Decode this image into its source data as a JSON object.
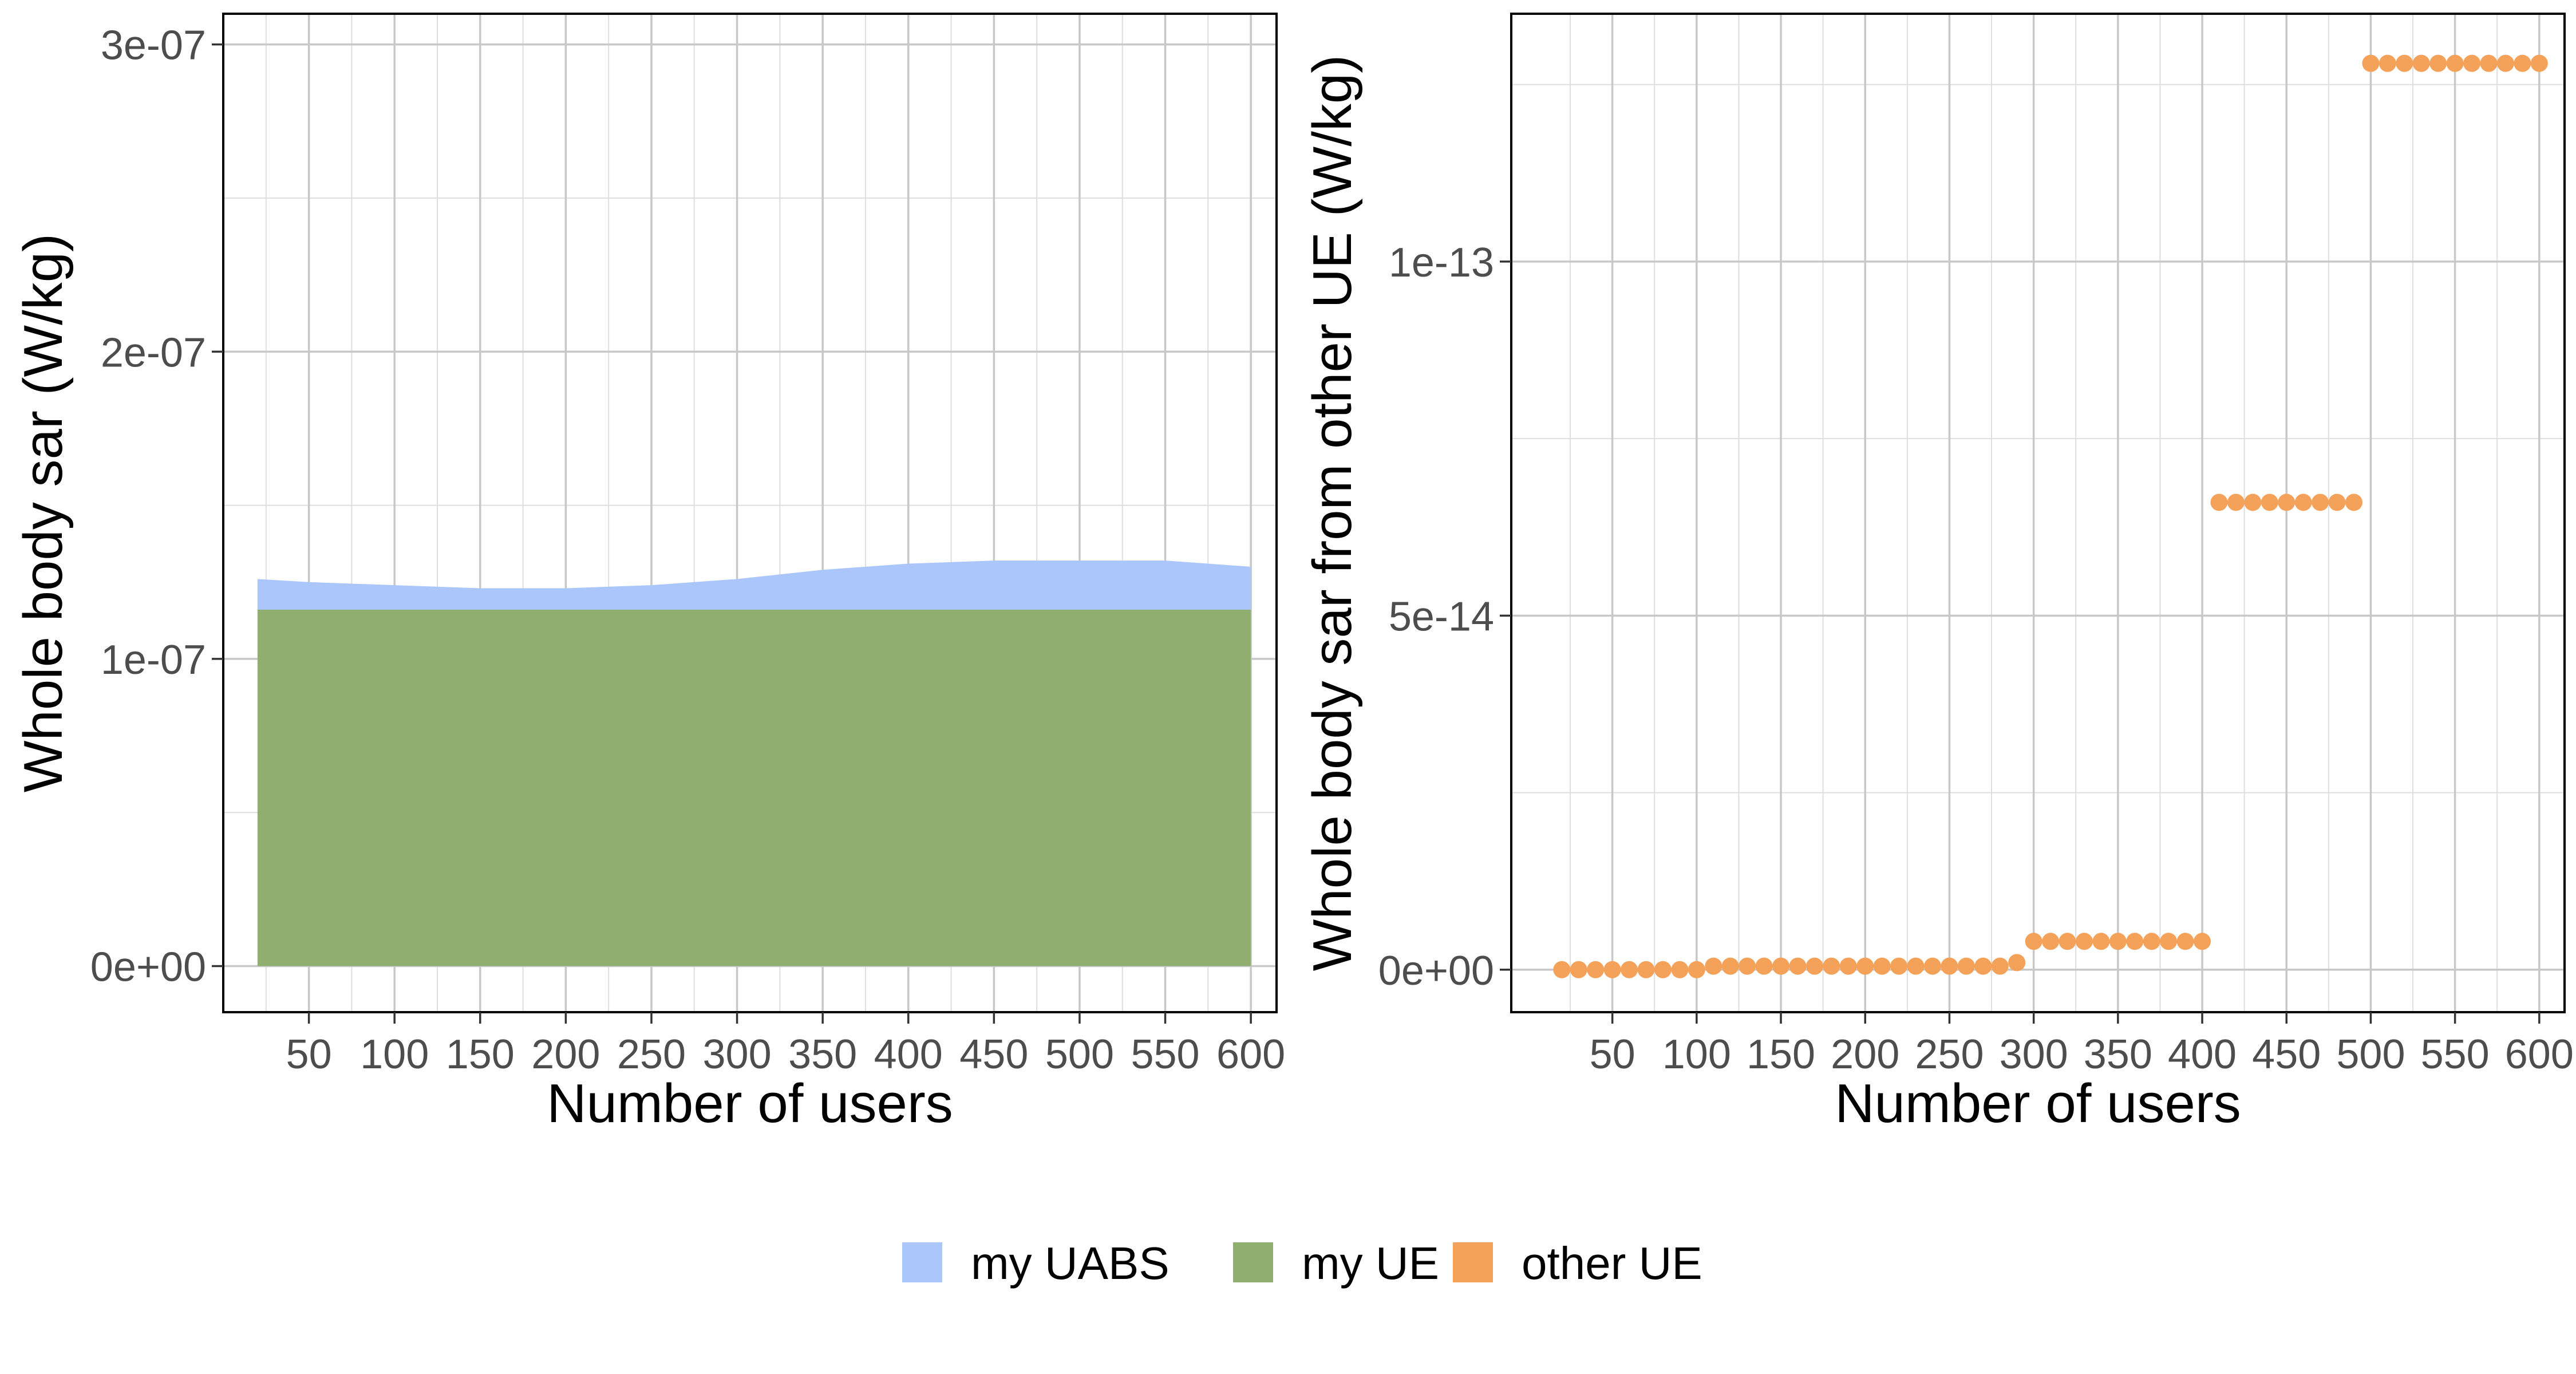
{
  "chart_data": [
    {
      "type": "area",
      "xlabel": "Number of users",
      "ylabel": "Whole body sar (W/kg)",
      "xlim": [
        0,
        615
      ],
      "ylim": [
        -1.5e-08,
        3.1e-07
      ],
      "x_ticks": [
        50,
        100,
        150,
        200,
        250,
        300,
        350,
        400,
        450,
        500,
        550,
        600
      ],
      "x_tick_labels": [
        "50",
        "100",
        "150",
        "200",
        "250",
        "300",
        "350",
        "400",
        "450",
        "500",
        "550",
        "600"
      ],
      "y_ticks": [
        0,
        1e-07,
        2e-07,
        3e-07
      ],
      "y_tick_labels": [
        "0e+00",
        "1e-07",
        "2e-07",
        "3e-07"
      ],
      "stacked": true,
      "grid": true,
      "x": [
        20,
        50,
        100,
        150,
        200,
        250,
        300,
        350,
        400,
        450,
        500,
        550,
        600
      ],
      "series": [
        {
          "name": "my UE",
          "color": "#8fae6f",
          "values": [
            1.16e-07,
            1.16e-07,
            1.16e-07,
            1.16e-07,
            1.16e-07,
            1.16e-07,
            1.16e-07,
            1.16e-07,
            1.16e-07,
            1.16e-07,
            1.16e-07,
            1.16e-07,
            1.16e-07
          ]
        },
        {
          "name": "my UABS",
          "color": "#aac6fb",
          "values": [
            1e-08,
            9e-09,
            8e-09,
            7e-09,
            7e-09,
            8e-09,
            1e-08,
            1.3e-08,
            1.5e-08,
            1.6e-08,
            1.6e-08,
            1.6e-08,
            1.4e-08
          ]
        }
      ]
    },
    {
      "type": "scatter",
      "xlabel": "Number of users",
      "ylabel": "Whole body sar from other UE (W/kg)",
      "xlim": [
        -10,
        615
      ],
      "ylim": [
        -6e-15,
        1.35e-13
      ],
      "x_ticks": [
        50,
        100,
        150,
        200,
        250,
        300,
        350,
        400,
        450,
        500,
        550,
        600
      ],
      "x_tick_labels": [
        "50",
        "100",
        "150",
        "200",
        "250",
        "300",
        "350",
        "400",
        "450",
        "500",
        "550",
        "600"
      ],
      "y_ticks": [
        0,
        5e-14,
        1e-13
      ],
      "y_tick_labels": [
        "0e+00",
        "5e-14",
        "1e-13"
      ],
      "grid": true,
      "series": [
        {
          "name": "other UE",
          "color": "#f4a259",
          "points": [
            [
              20,
              0
            ],
            [
              30,
              0
            ],
            [
              40,
              0
            ],
            [
              50,
              0
            ],
            [
              60,
              0
            ],
            [
              70,
              0
            ],
            [
              80,
              0
            ],
            [
              90,
              0
            ],
            [
              100,
              0
            ],
            [
              110,
              5e-16
            ],
            [
              120,
              5e-16
            ],
            [
              130,
              5e-16
            ],
            [
              140,
              5e-16
            ],
            [
              150,
              5e-16
            ],
            [
              160,
              5e-16
            ],
            [
              170,
              5e-16
            ],
            [
              180,
              5e-16
            ],
            [
              190,
              5e-16
            ],
            [
              200,
              5e-16
            ],
            [
              210,
              5e-16
            ],
            [
              220,
              5e-16
            ],
            [
              230,
              5e-16
            ],
            [
              240,
              5e-16
            ],
            [
              250,
              5e-16
            ],
            [
              260,
              5e-16
            ],
            [
              270,
              5e-16
            ],
            [
              280,
              5e-16
            ],
            [
              290,
              1e-15
            ],
            [
              300,
              4e-15
            ],
            [
              310,
              4e-15
            ],
            [
              320,
              4e-15
            ],
            [
              330,
              4e-15
            ],
            [
              340,
              4e-15
            ],
            [
              350,
              4e-15
            ],
            [
              360,
              4e-15
            ],
            [
              370,
              4e-15
            ],
            [
              380,
              4e-15
            ],
            [
              390,
              4e-15
            ],
            [
              400,
              4e-15
            ],
            [
              410,
              6.6e-14
            ],
            [
              420,
              6.6e-14
            ],
            [
              430,
              6.6e-14
            ],
            [
              440,
              6.6e-14
            ],
            [
              450,
              6.6e-14
            ],
            [
              460,
              6.6e-14
            ],
            [
              470,
              6.6e-14
            ],
            [
              480,
              6.6e-14
            ],
            [
              490,
              6.6e-14
            ],
            [
              500,
              1.28e-13
            ],
            [
              510,
              1.28e-13
            ],
            [
              520,
              1.28e-13
            ],
            [
              530,
              1.28e-13
            ],
            [
              540,
              1.28e-13
            ],
            [
              550,
              1.28e-13
            ],
            [
              560,
              1.28e-13
            ],
            [
              570,
              1.28e-13
            ],
            [
              580,
              1.28e-13
            ],
            [
              590,
              1.28e-13
            ],
            [
              600,
              1.28e-13
            ]
          ]
        }
      ]
    }
  ],
  "legend": {
    "placement": "bottom-center",
    "items": [
      {
        "label": "my UABS",
        "color": "#aac6fb"
      },
      {
        "label": "my UE",
        "color": "#8fae6f"
      },
      {
        "label": "other UE",
        "color": "#f4a259"
      }
    ]
  }
}
